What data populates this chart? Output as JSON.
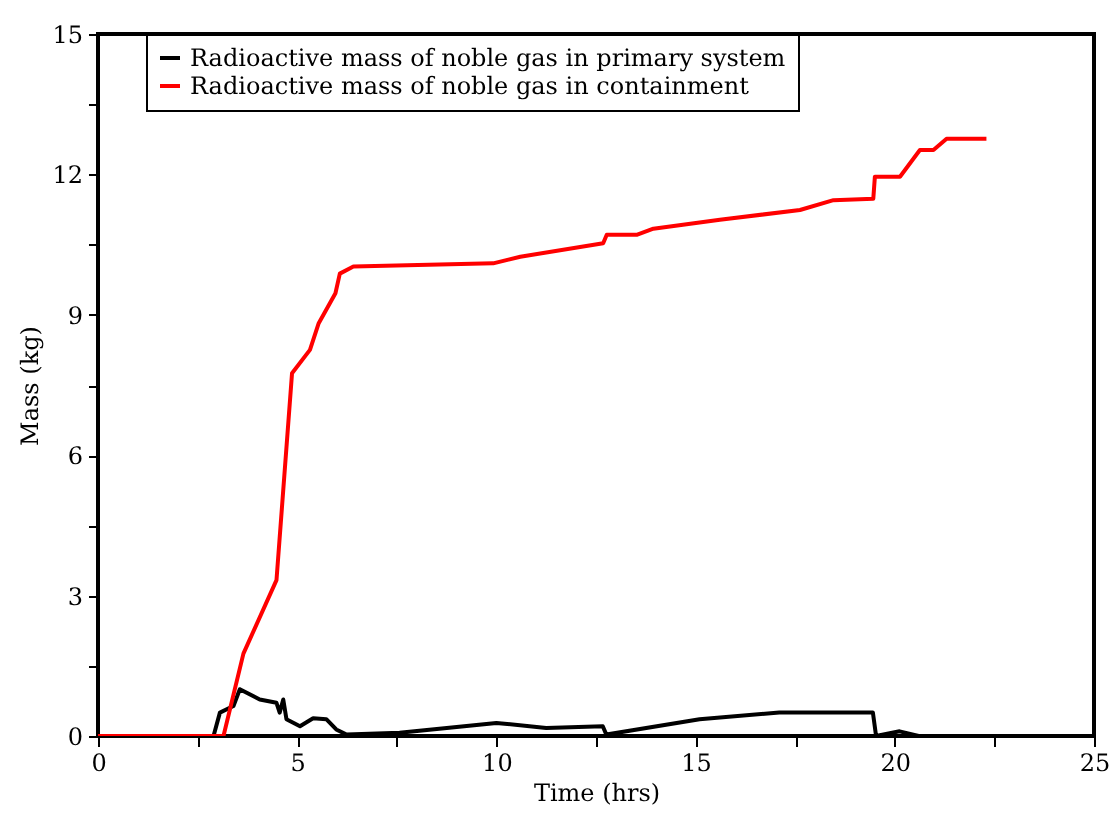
{
  "chart_data": {
    "type": "line",
    "xlabel": "Time (hrs)",
    "ylabel": "Mass (kg)",
    "xlim": [
      0,
      25
    ],
    "ylim": [
      0,
      15
    ],
    "xticks": [
      0,
      {
        "value": 2.5,
        "label": null
      },
      5,
      {
        "value": 7.5,
        "label": null
      },
      10,
      {
        "value": 12.5,
        "label": null
      },
      15,
      {
        "value": 17.5,
        "label": null
      },
      20,
      {
        "value": 22.5,
        "label": null
      },
      25
    ],
    "yticks": [
      0,
      {
        "value": 1.5,
        "label": null
      },
      3,
      {
        "value": 4.5,
        "label": null
      },
      6,
      {
        "value": 7.5,
        "label": null
      },
      9,
      {
        "value": 10.5,
        "label": null
      },
      12,
      {
        "value": 13.5,
        "label": null
      },
      15
    ],
    "grid": false,
    "legend": "top left",
    "line_style": "solid",
    "marker": "none",
    "series": [
      {
        "name": "Radioactive mass of noble gas in primary system",
        "color": "#000000",
        "x": [
          0,
          2.9,
          3.06,
          3.4,
          3.56,
          4.06,
          4.48,
          4.56,
          4.65,
          4.73,
          5.07,
          5.4,
          5.73,
          5.98,
          6.24,
          7.57,
          10.0,
          11.25,
          12.67,
          12.76,
          15.1,
          17.1,
          19.45,
          19.53,
          20.12,
          20.6,
          22.3
        ],
        "values": [
          0,
          0,
          0.5,
          0.64,
          1.0,
          0.78,
          0.71,
          0.5,
          0.78,
          0.36,
          0.21,
          0.38,
          0.36,
          0.14,
          0.03,
          0.07,
          0.28,
          0.17,
          0.21,
          0.03,
          0.36,
          0.5,
          0.5,
          0,
          0.1,
          0,
          0
        ]
      },
      {
        "name": "Radioactive mass of noble gas in containment",
        "color": "#ff0000",
        "x": [
          0,
          3.15,
          3.65,
          4.48,
          4.87,
          5.32,
          5.54,
          5.96,
          6.07,
          6.41,
          9.92,
          10.6,
          12.68,
          12.77,
          13.52,
          13.94,
          15.61,
          17.62,
          18.46,
          19.46,
          19.5,
          20.13,
          20.63,
          20.97,
          21.3,
          22.3
        ],
        "values": [
          0,
          0,
          1.76,
          3.33,
          7.75,
          8.25,
          8.82,
          9.46,
          9.88,
          10.03,
          10.1,
          10.24,
          10.53,
          10.71,
          10.71,
          10.84,
          11.03,
          11.24,
          11.45,
          11.48,
          11.95,
          11.95,
          12.52,
          12.52,
          12.76,
          12.76
        ]
      }
    ]
  }
}
